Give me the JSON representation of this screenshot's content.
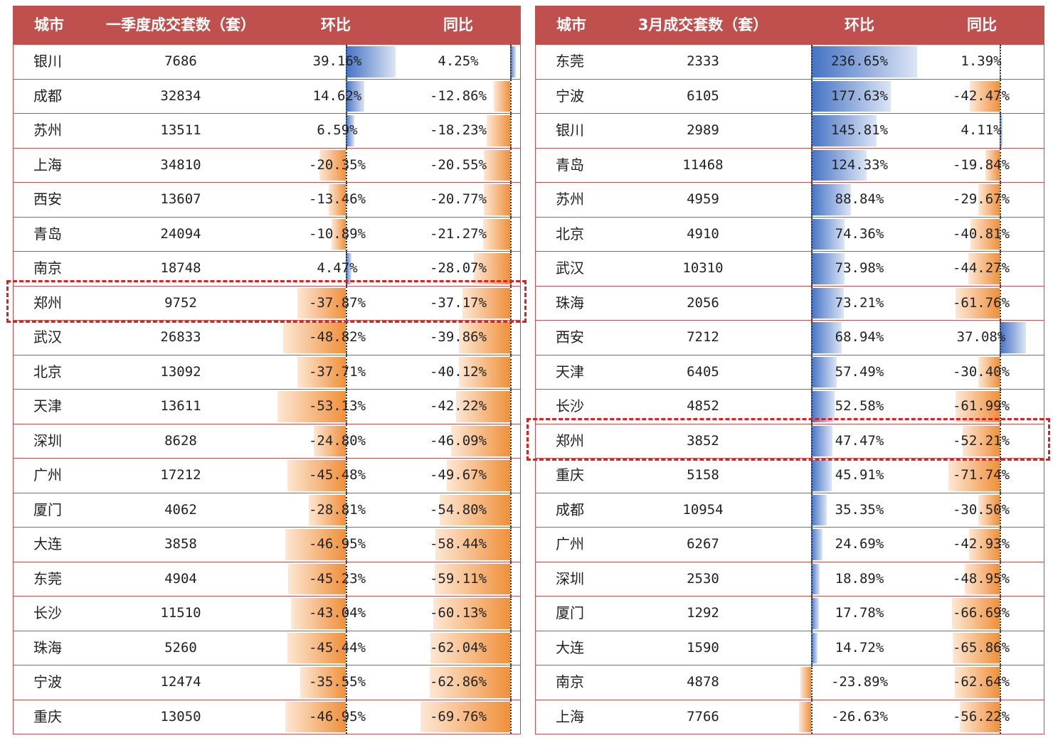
{
  "colors": {
    "header_bg": "#c0504d",
    "positive_bar": "#4472c4",
    "negative_bar": "#f0903a",
    "highlight": "#e02020"
  },
  "chart_data": [
    {
      "type": "table",
      "columns": [
        "城市",
        "一季度成交套数（套）",
        "环比",
        "同比"
      ],
      "rows": [
        {
          "city": "银川",
          "volume": "7686",
          "mom": "39.16%",
          "yoy": "4.25%"
        },
        {
          "city": "成都",
          "volume": "32834",
          "mom": "14.62%",
          "yoy": "-12.86%"
        },
        {
          "city": "苏州",
          "volume": "13511",
          "mom": "6.59%",
          "yoy": "-18.23%"
        },
        {
          "city": "上海",
          "volume": "34810",
          "mom": "-20.35%",
          "yoy": "-20.55%"
        },
        {
          "city": "西安",
          "volume": "13607",
          "mom": "-13.46%",
          "yoy": "-20.77%"
        },
        {
          "city": "青岛",
          "volume": "24094",
          "mom": "-10.89%",
          "yoy": "-21.27%"
        },
        {
          "city": "南京",
          "volume": "18748",
          "mom": "4.47%",
          "yoy": "-28.07%"
        },
        {
          "city": "郑州",
          "volume": "9752",
          "mom": "-37.87%",
          "yoy": "-37.17%"
        },
        {
          "city": "武汉",
          "volume": "26833",
          "mom": "-48.82%",
          "yoy": "-39.86%"
        },
        {
          "city": "北京",
          "volume": "13092",
          "mom": "-37.71%",
          "yoy": "-40.12%"
        },
        {
          "city": "天津",
          "volume": "13611",
          "mom": "-53.13%",
          "yoy": "-42.22%"
        },
        {
          "city": "深圳",
          "volume": "8628",
          "mom": "-24.80%",
          "yoy": "-46.09%"
        },
        {
          "city": "广州",
          "volume": "17212",
          "mom": "-45.48%",
          "yoy": "-49.67%"
        },
        {
          "city": "厦门",
          "volume": "4062",
          "mom": "-28.81%",
          "yoy": "-54.80%"
        },
        {
          "city": "大连",
          "volume": "3858",
          "mom": "-46.95%",
          "yoy": "-58.44%"
        },
        {
          "city": "东莞",
          "volume": "4904",
          "mom": "-45.23%",
          "yoy": "-59.11%"
        },
        {
          "city": "长沙",
          "volume": "11510",
          "mom": "-43.04%",
          "yoy": "-60.13%"
        },
        {
          "city": "珠海",
          "volume": "5260",
          "mom": "-45.44%",
          "yoy": "-62.04%"
        },
        {
          "city": "宁波",
          "volume": "12474",
          "mom": "-35.55%",
          "yoy": "-62.86%"
        },
        {
          "city": "重庆",
          "volume": "13050",
          "mom": "-46.95%",
          "yoy": "-69.76%"
        }
      ],
      "highlighted_city": "郑州"
    },
    {
      "type": "table",
      "columns": [
        "城市",
        "3月成交套数（套）",
        "环比",
        "同比"
      ],
      "rows": [
        {
          "city": "东莞",
          "volume": "2333",
          "mom": "236.65%",
          "yoy": "1.39%"
        },
        {
          "city": "宁波",
          "volume": "6105",
          "mom": "177.63%",
          "yoy": "-42.47%"
        },
        {
          "city": "银川",
          "volume": "2989",
          "mom": "145.81%",
          "yoy": "4.11%"
        },
        {
          "city": "青岛",
          "volume": "11468",
          "mom": "124.33%",
          "yoy": "-19.84%"
        },
        {
          "city": "苏州",
          "volume": "4959",
          "mom": "88.84%",
          "yoy": "-29.67%"
        },
        {
          "city": "北京",
          "volume": "4910",
          "mom": "74.36%",
          "yoy": "-40.81%"
        },
        {
          "city": "武汉",
          "volume": "10310",
          "mom": "73.98%",
          "yoy": "-44.27%"
        },
        {
          "city": "珠海",
          "volume": "2056",
          "mom": "73.21%",
          "yoy": "-61.76%"
        },
        {
          "city": "西安",
          "volume": "7212",
          "mom": "68.94%",
          "yoy": "37.08%"
        },
        {
          "city": "天津",
          "volume": "6405",
          "mom": "57.49%",
          "yoy": "-30.40%"
        },
        {
          "city": "长沙",
          "volume": "4852",
          "mom": "52.58%",
          "yoy": "-61.99%"
        },
        {
          "city": "郑州",
          "volume": "3852",
          "mom": "47.47%",
          "yoy": "-52.21%"
        },
        {
          "city": "重庆",
          "volume": "5158",
          "mom": "45.91%",
          "yoy": "-71.74%"
        },
        {
          "city": "成都",
          "volume": "10954",
          "mom": "35.35%",
          "yoy": "-30.50%"
        },
        {
          "city": "广州",
          "volume": "6267",
          "mom": "24.69%",
          "yoy": "-42.93%"
        },
        {
          "city": "深圳",
          "volume": "2530",
          "mom": "18.89%",
          "yoy": "-48.95%"
        },
        {
          "city": "厦门",
          "volume": "1292",
          "mom": "17.78%",
          "yoy": "-66.69%"
        },
        {
          "city": "大连",
          "volume": "1590",
          "mom": "14.72%",
          "yoy": "-65.86%"
        },
        {
          "city": "南京",
          "volume": "4878",
          "mom": "-23.89%",
          "yoy": "-62.64%"
        },
        {
          "city": "上海",
          "volume": "7766",
          "mom": "-26.63%",
          "yoy": "-56.22%"
        }
      ],
      "highlighted_city": "郑州"
    }
  ]
}
